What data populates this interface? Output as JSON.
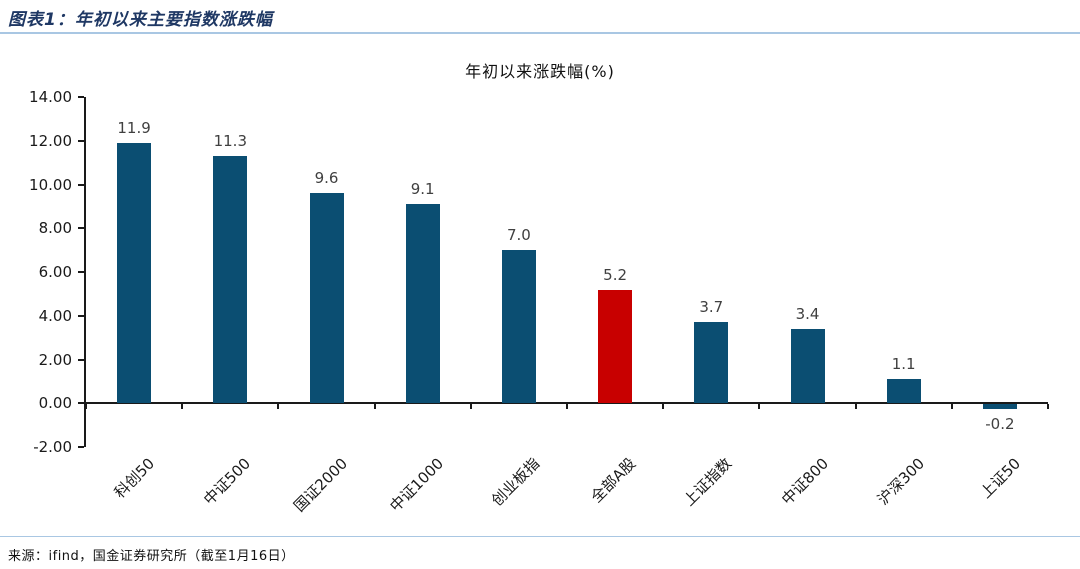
{
  "header": {
    "title": "图表1：年初以来主要指数涨跌幅"
  },
  "chart_data": {
    "type": "bar",
    "title": "年初以来涨跌幅(%)",
    "categories": [
      "科创50",
      "中证500",
      "国证2000",
      "中证1000",
      "创业板指",
      "全部A股",
      "上证指数",
      "中证800",
      "沪深300",
      "上证50"
    ],
    "values": [
      11.9,
      11.3,
      9.6,
      9.1,
      7.0,
      5.2,
      3.7,
      3.4,
      1.1,
      -0.2
    ],
    "highlight_index": 5,
    "colors": {
      "bar_default": "#0b4e72",
      "bar_highlight": "#c80000",
      "value_label": "#404040",
      "axis": "#1a1a1a"
    },
    "xlabel": "",
    "ylabel": "",
    "ylim": [
      -2,
      14
    ],
    "ytick_step": 2,
    "ytick_labels": [
      "14.00",
      "12.00",
      "10.00",
      "8.00",
      "6.00",
      "4.00",
      "2.00",
      "0.00",
      "-2.00"
    ],
    "grid": false,
    "legend": null,
    "value_label_decimals": 1,
    "x_label_rotation_deg": 45
  },
  "footer": {
    "source": "来源：ifind，国金证券研究所（截至1月16日）"
  }
}
